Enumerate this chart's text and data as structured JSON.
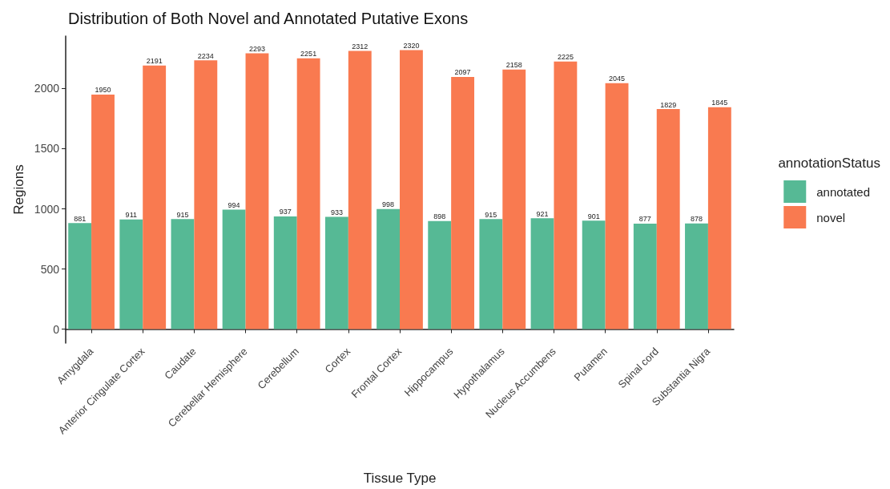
{
  "chart_data": {
    "type": "bar",
    "title": "Distribution of Both Novel and Annotated Putative Exons",
    "xlabel": "Tissue Type",
    "ylabel": "Regions",
    "legend_title": "annotationStatus",
    "categories": [
      "Amygdala",
      "Anterior Cingulate Cortex",
      "Caudate",
      "Cerebellar Hemisphere",
      "Cerebellum",
      "Cortex",
      "Frontal Cortex",
      "Hippocampus",
      "Hypothalamus",
      "Nucleus Accumbens",
      "Putamen",
      "Spinal cord",
      "Substantia Nigra"
    ],
    "series": [
      {
        "name": "annotated",
        "color": "#56b995",
        "values": [
          881,
          911,
          915,
          994,
          937,
          933,
          998,
          898,
          915,
          921,
          901,
          877,
          878
        ]
      },
      {
        "name": "novel",
        "color": "#f97a50",
        "values": [
          1950,
          2191,
          2234,
          2293,
          2251,
          2312,
          2320,
          2097,
          2158,
          2225,
          2045,
          1829,
          1845
        ]
      }
    ],
    "ylim": [
      -116,
      2436
    ],
    "yticks": [
      0,
      500,
      1000,
      1500,
      2000
    ],
    "grid": false,
    "legend": "right",
    "data_labels": true
  }
}
